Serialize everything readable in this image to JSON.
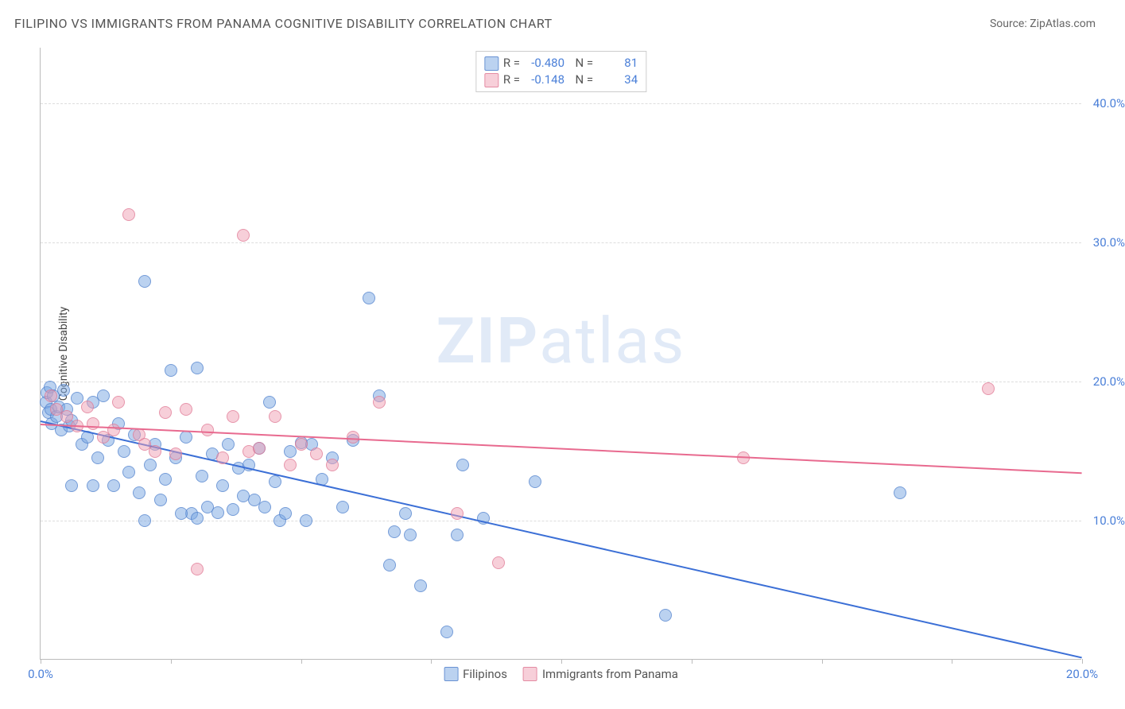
{
  "title": "FILIPINO VS IMMIGRANTS FROM PANAMA COGNITIVE DISABILITY CORRELATION CHART",
  "source": "Source: ZipAtlas.com",
  "watermark_bold": "ZIP",
  "watermark_rest": "atlas",
  "y_axis_title": "Cognitive Disability",
  "chart": {
    "type": "scatter",
    "xlim": [
      0,
      20
    ],
    "ylim": [
      0,
      44
    ],
    "y_ticks": [
      10,
      20,
      30,
      40
    ],
    "y_tick_labels": [
      "10.0%",
      "20.0%",
      "30.0%",
      "40.0%"
    ],
    "x_ticks": [
      0,
      2.5,
      5,
      7.5,
      10,
      12.5,
      15,
      17.5,
      20
    ],
    "x_tick_labels": {
      "0": "0.0%",
      "20": "20.0%"
    },
    "grid_color": "#dddddd",
    "border_color": "#bbbbbb",
    "background_color": "#ffffff",
    "marker_radius": 8,
    "series": [
      {
        "name": "Filipinos",
        "color_fill": "rgba(120,165,225,0.5)",
        "color_stroke": "rgba(70,120,200,0.6)",
        "R": "-0.480",
        "N": "81",
        "trend": {
          "x1": 0,
          "y1": 17.2,
          "x2": 20,
          "y2": 0.2,
          "color": "#3b6fd6"
        },
        "points": [
          [
            0.1,
            18.5
          ],
          [
            0.12,
            19.2
          ],
          [
            0.15,
            17.8
          ],
          [
            0.18,
            19.6
          ],
          [
            0.2,
            18.0
          ],
          [
            0.22,
            17.0
          ],
          [
            0.25,
            19.0
          ],
          [
            0.3,
            17.5
          ],
          [
            0.35,
            18.2
          ],
          [
            0.4,
            16.5
          ],
          [
            0.45,
            19.4
          ],
          [
            0.5,
            18.0
          ],
          [
            0.55,
            16.8
          ],
          [
            0.6,
            17.2
          ],
          [
            0.7,
            18.8
          ],
          [
            0.8,
            15.5
          ],
          [
            0.9,
            16.0
          ],
          [
            1.0,
            18.5
          ],
          [
            1.1,
            14.5
          ],
          [
            1.2,
            19.0
          ],
          [
            1.3,
            15.8
          ],
          [
            1.4,
            12.5
          ],
          [
            1.5,
            17.0
          ],
          [
            1.6,
            15.0
          ],
          [
            1.7,
            13.5
          ],
          [
            1.8,
            16.2
          ],
          [
            1.9,
            12.0
          ],
          [
            2.0,
            27.2
          ],
          [
            2.1,
            14.0
          ],
          [
            2.2,
            15.5
          ],
          [
            2.3,
            11.5
          ],
          [
            2.4,
            13.0
          ],
          [
            2.5,
            20.8
          ],
          [
            2.6,
            14.5
          ],
          [
            2.8,
            16.0
          ],
          [
            2.9,
            10.5
          ],
          [
            3.0,
            21.0
          ],
          [
            3.1,
            13.2
          ],
          [
            3.2,
            11.0
          ],
          [
            3.3,
            14.8
          ],
          [
            3.5,
            12.5
          ],
          [
            3.6,
            15.5
          ],
          [
            3.7,
            10.8
          ],
          [
            3.8,
            13.8
          ],
          [
            4.0,
            14.0
          ],
          [
            4.1,
            11.5
          ],
          [
            4.2,
            15.2
          ],
          [
            4.4,
            18.5
          ],
          [
            4.5,
            12.8
          ],
          [
            4.6,
            10.0
          ],
          [
            4.8,
            15.0
          ],
          [
            5.0,
            15.6
          ],
          [
            5.2,
            15.5
          ],
          [
            5.4,
            13.0
          ],
          [
            5.6,
            14.5
          ],
          [
            5.8,
            11.0
          ],
          [
            6.0,
            15.8
          ],
          [
            6.3,
            26.0
          ],
          [
            6.5,
            19.0
          ],
          [
            6.7,
            6.8
          ],
          [
            6.8,
            9.2
          ],
          [
            7.0,
            10.5
          ],
          [
            7.1,
            9.0
          ],
          [
            7.3,
            5.3
          ],
          [
            7.8,
            2.0
          ],
          [
            8.0,
            9.0
          ],
          [
            8.1,
            14.0
          ],
          [
            8.5,
            10.2
          ],
          [
            9.5,
            12.8
          ],
          [
            12.0,
            3.2
          ],
          [
            16.5,
            12.0
          ],
          [
            2.0,
            10.0
          ],
          [
            2.7,
            10.5
          ],
          [
            3.0,
            10.2
          ],
          [
            3.4,
            10.6
          ],
          [
            3.9,
            11.8
          ],
          [
            4.3,
            11.0
          ],
          [
            4.7,
            10.5
          ],
          [
            5.1,
            10.0
          ],
          [
            1.0,
            12.5
          ],
          [
            0.6,
            12.5
          ]
        ]
      },
      {
        "name": "Immigrants from Panama",
        "color_fill": "rgba(240,160,180,0.5)",
        "color_stroke": "rgba(220,110,140,0.6)",
        "R": "-0.148",
        "N": "34",
        "trend": {
          "x1": 0,
          "y1": 17.0,
          "x2": 20,
          "y2": 13.5,
          "color": "#e86a8f"
        },
        "points": [
          [
            0.3,
            18.0
          ],
          [
            0.5,
            17.5
          ],
          [
            0.7,
            16.8
          ],
          [
            0.9,
            18.2
          ],
          [
            1.0,
            17.0
          ],
          [
            1.2,
            16.0
          ],
          [
            1.4,
            16.5
          ],
          [
            1.5,
            18.5
          ],
          [
            1.7,
            32.0
          ],
          [
            1.9,
            16.2
          ],
          [
            2.0,
            15.5
          ],
          [
            2.2,
            15.0
          ],
          [
            2.4,
            17.8
          ],
          [
            2.6,
            14.8
          ],
          [
            2.8,
            18.0
          ],
          [
            3.0,
            6.5
          ],
          [
            3.2,
            16.5
          ],
          [
            3.5,
            14.5
          ],
          [
            3.7,
            17.5
          ],
          [
            3.9,
            30.5
          ],
          [
            4.0,
            15.0
          ],
          [
            4.2,
            15.2
          ],
          [
            4.5,
            17.5
          ],
          [
            4.8,
            14.0
          ],
          [
            5.0,
            15.5
          ],
          [
            5.3,
            14.8
          ],
          [
            5.6,
            14.0
          ],
          [
            6.0,
            16.0
          ],
          [
            6.5,
            18.5
          ],
          [
            8.0,
            10.5
          ],
          [
            8.8,
            7.0
          ],
          [
            13.5,
            14.5
          ],
          [
            18.2,
            19.5
          ],
          [
            0.2,
            19.0
          ]
        ]
      }
    ]
  },
  "legend": {
    "series1_label": "Filipinos",
    "series2_label": "Immigrants from Panama"
  }
}
